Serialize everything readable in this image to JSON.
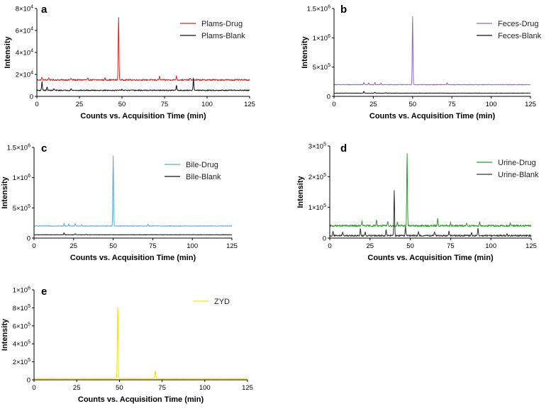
{
  "chart_data": [
    {
      "type": "line",
      "panel_label": "a",
      "xlabel": "Counts vs. Acquisition Time (min)",
      "ylabel": "Intensity",
      "xlim": [
        0,
        125
      ],
      "ylim": [
        0,
        80000
      ],
      "x_ticks": [
        0,
        25,
        50,
        75,
        100,
        125
      ],
      "y_ticks": [
        {
          "value": 0,
          "label": "0"
        },
        {
          "value": 20000,
          "label": "2×10",
          "exp": "4"
        },
        {
          "value": 40000,
          "label": "4×10",
          "exp": "4"
        },
        {
          "value": 60000,
          "label": "6×10",
          "exp": "4"
        },
        {
          "value": 80000,
          "label": "8×10",
          "exp": "4"
        }
      ],
      "legend_position": "top-right",
      "series": [
        {
          "name": "Plams-Drug",
          "color": "#d62728",
          "baseline": 15000,
          "noise": 600,
          "peaks": [
            [
              3,
              2500
            ],
            [
              7,
              2000
            ],
            [
              20,
              1500
            ],
            [
              30,
              1200
            ],
            [
              40,
              1500
            ],
            [
              48,
              58000
            ],
            [
              72,
              3000
            ],
            [
              82,
              3500
            ],
            [
              90,
              1500
            ]
          ]
        },
        {
          "name": "Plams-Blank",
          "color": "#111111",
          "baseline": 5500,
          "noise": 400,
          "peaks": [
            [
              3,
              8000
            ],
            [
              6,
              3000
            ],
            [
              10,
              1500
            ],
            [
              20,
              1500
            ],
            [
              50,
              1000
            ],
            [
              82,
              4500
            ],
            [
              92,
              11000
            ]
          ]
        }
      ]
    },
    {
      "type": "line",
      "panel_label": "b",
      "xlabel": "Counts vs. Acquisition Time (min)",
      "ylabel": "Intensity",
      "xlim": [
        0,
        125
      ],
      "ylim": [
        0,
        1500000
      ],
      "x_ticks": [
        0,
        25,
        50,
        75,
        100,
        125
      ],
      "y_ticks": [
        {
          "value": 0,
          "label": "0"
        },
        {
          "value": 500000,
          "label": "5×10",
          "exp": "5"
        },
        {
          "value": 1000000,
          "label": "1×10",
          "exp": "6"
        },
        {
          "value": 1500000,
          "label": "1.5×10",
          "exp": "6"
        }
      ],
      "legend_position": "top-right",
      "series": [
        {
          "name": "Feces-Drug",
          "color": "#9467bd",
          "baseline": 200000,
          "noise": 5000,
          "peaks": [
            [
              19,
              40000
            ],
            [
              22,
              30000
            ],
            [
              26,
              40000
            ],
            [
              30,
              25000
            ],
            [
              50,
              1160000
            ],
            [
              72,
              30000
            ]
          ]
        },
        {
          "name": "Feces-Blank",
          "color": "#111111",
          "baseline": 55000,
          "noise": 3000,
          "peaks": [
            [
              19,
              30000
            ],
            [
              26,
              15000
            ],
            [
              33,
              10000
            ]
          ]
        }
      ]
    },
    {
      "type": "line",
      "panel_label": "c",
      "xlabel": "Counts vs. Acquisition Time (min)",
      "ylabel": "Intensity",
      "xlim": [
        0,
        125
      ],
      "ylim": [
        0,
        1500000
      ],
      "x_ticks": [
        0,
        25,
        50,
        75,
        100,
        125
      ],
      "y_ticks": [
        {
          "value": 0,
          "label": "0"
        },
        {
          "value": 500000,
          "label": "5×10",
          "exp": "5"
        },
        {
          "value": 1000000,
          "label": "1×10",
          "exp": "6"
        },
        {
          "value": 1500000,
          "label": "1.5×10",
          "exp": "6"
        }
      ],
      "legend_position": "top-right",
      "series": [
        {
          "name": "Bile-Drug",
          "color": "#5da5da",
          "baseline": 200000,
          "noise": 5000,
          "peaks": [
            [
              19,
              40000
            ],
            [
              22,
              30000
            ],
            [
              26,
              40000
            ],
            [
              30,
              25000
            ],
            [
              50,
              1160000
            ],
            [
              72,
              30000
            ]
          ]
        },
        {
          "name": "Bile-Blank",
          "color": "#111111",
          "baseline": 55000,
          "noise": 3000,
          "peaks": [
            [
              19,
              30000
            ],
            [
              26,
              15000
            ],
            [
              33,
              10000
            ]
          ]
        }
      ]
    },
    {
      "type": "line",
      "panel_label": "d",
      "xlabel": "Counts vs. Acquisition Time (min)",
      "ylabel": "Intensity",
      "xlim": [
        0,
        125
      ],
      "ylim": [
        0,
        300000
      ],
      "x_ticks": [
        0,
        25,
        50,
        75,
        100,
        125
      ],
      "y_ticks": [
        {
          "value": 0,
          "label": "0"
        },
        {
          "value": 100000,
          "label": "1×10",
          "exp": "5"
        },
        {
          "value": 200000,
          "label": "2×10",
          "exp": "5"
        },
        {
          "value": 300000,
          "label": "3×10",
          "exp": "5"
        }
      ],
      "legend_position": "top-right",
      "series": [
        {
          "name": "Urine-Drug",
          "color": "#2ca02c",
          "baseline": 40000,
          "noise": 3000,
          "peaks": [
            [
              20,
              15000
            ],
            [
              29,
              20000
            ],
            [
              36,
              15000
            ],
            [
              42,
              12000
            ],
            [
              48,
              238000
            ],
            [
              67,
              25000
            ],
            [
              75,
              12000
            ],
            [
              85,
              10000
            ],
            [
              93,
              15000
            ],
            [
              112,
              10000
            ]
          ]
        },
        {
          "name": "Urine-Blank",
          "color": "#333333",
          "baseline": 8000,
          "noise": 2500,
          "peaks": [
            [
              2,
              15000
            ],
            [
              8,
              10000
            ],
            [
              19,
              25000
            ],
            [
              22,
              12000
            ],
            [
              35,
              20000
            ],
            [
              40,
              146000
            ],
            [
              47,
              30000
            ],
            [
              55,
              15000
            ],
            [
              65,
              12000
            ],
            [
              74,
              15000
            ],
            [
              88,
              12000
            ],
            [
              92,
              25000
            ],
            [
              110,
              8000
            ]
          ]
        }
      ]
    },
    {
      "type": "line",
      "panel_label": "e",
      "xlabel": "Counts vs. Acquisition Time (min)",
      "ylabel": "Intensity",
      "xlim": [
        0,
        125
      ],
      "ylim": [
        0,
        1000000
      ],
      "x_ticks": [
        0,
        25,
        50,
        75,
        100,
        125
      ],
      "y_ticks": [
        {
          "value": 0,
          "label": "0"
        },
        {
          "value": 200000,
          "label": "2×10",
          "exp": "5"
        },
        {
          "value": 400000,
          "label": "4×10",
          "exp": "5"
        },
        {
          "value": 600000,
          "label": "6×10",
          "exp": "5"
        },
        {
          "value": 800000,
          "label": "8×10",
          "exp": "5"
        },
        {
          "value": 1000000,
          "label": "1×10",
          "exp": "6"
        }
      ],
      "legend_position": "top-right",
      "series": [
        {
          "name": "ZYD",
          "color": "#f2e600",
          "baseline": 15000,
          "noise": 2500,
          "peaks": [
            [
              22,
              8000
            ],
            [
              49,
              835000
            ],
            [
              71,
              90000
            ]
          ]
        }
      ]
    }
  ]
}
